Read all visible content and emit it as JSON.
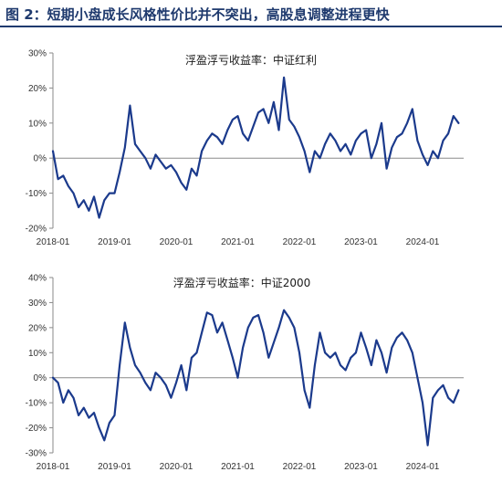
{
  "figure_title": "图 2：短期小盘成长风格性价比并不突出，高股息调整进程更快",
  "line_color": "#1b3a8c",
  "chart_data": [
    {
      "type": "line",
      "title": "浮盈浮亏收益率：中证红利",
      "ylim": [
        -20,
        30
      ],
      "y_ticks": [
        -20,
        -10,
        0,
        10,
        20,
        30
      ],
      "y_tick_labels": [
        "-20%",
        "-10%",
        "0%",
        "10%",
        "20%",
        "30%"
      ],
      "x_range": [
        "2018-01",
        "2024-09"
      ],
      "x_tick_labels": [
        "2018-01",
        "2019-01",
        "2020-01",
        "2021-01",
        "2022-01",
        "2023-01",
        "2024-01"
      ],
      "series": [
        {
          "x": [
            "2018-01",
            "2018-02",
            "2018-03",
            "2018-04",
            "2018-05",
            "2018-06",
            "2018-07",
            "2018-08",
            "2018-09",
            "2018-10",
            "2018-11",
            "2018-12",
            "2019-01",
            "2019-02",
            "2019-03",
            "2019-04",
            "2019-05",
            "2019-06",
            "2019-07",
            "2019-08",
            "2019-09",
            "2019-10",
            "2019-11",
            "2019-12",
            "2020-01",
            "2020-02",
            "2020-03",
            "2020-04",
            "2020-05",
            "2020-06",
            "2020-07",
            "2020-08",
            "2020-09",
            "2020-10",
            "2020-11",
            "2020-12",
            "2021-01",
            "2021-02",
            "2021-03",
            "2021-04",
            "2021-05",
            "2021-06",
            "2021-07",
            "2021-08",
            "2021-09",
            "2021-10",
            "2021-11",
            "2021-12",
            "2022-01",
            "2022-02",
            "2022-03",
            "2022-04",
            "2022-05",
            "2022-06",
            "2022-07",
            "2022-08",
            "2022-09",
            "2022-10",
            "2022-11",
            "2022-12",
            "2023-01",
            "2023-02",
            "2023-03",
            "2023-04",
            "2023-05",
            "2023-06",
            "2023-07",
            "2023-08",
            "2023-09",
            "2023-10",
            "2023-11",
            "2023-12",
            "2024-01",
            "2024-02",
            "2024-03",
            "2024-04",
            "2024-05",
            "2024-06",
            "2024-07",
            "2024-08"
          ],
          "y": [
            2,
            -6,
            -5,
            -8,
            -10,
            -14,
            -12,
            -15,
            -11,
            -17,
            -12,
            -10,
            -10,
            -4,
            3,
            15,
            4,
            2,
            0,
            -3,
            1,
            -1,
            -3,
            -2,
            -4,
            -7,
            -9,
            -3,
            -5,
            2,
            5,
            7,
            6,
            4,
            8,
            11,
            12,
            7,
            5,
            9,
            13,
            14,
            10,
            16,
            8,
            23,
            11,
            9,
            6,
            2,
            -4,
            2,
            0,
            4,
            7,
            5,
            2,
            4,
            1,
            5,
            7,
            8,
            0,
            4,
            10,
            -3,
            3,
            6,
            7,
            10,
            14,
            5,
            1,
            -2,
            2,
            0,
            5,
            7,
            12,
            10
          ]
        }
      ]
    },
    {
      "type": "line",
      "title": "浮盈浮亏收益率：中证2000",
      "ylim": [
        -30,
        40
      ],
      "y_ticks": [
        -30,
        -20,
        -10,
        0,
        10,
        20,
        30,
        40
      ],
      "y_tick_labels": [
        "-30%",
        "-20%",
        "-10%",
        "0%",
        "10%",
        "20%",
        "30%",
        "40%"
      ],
      "x_range": [
        "2018-01",
        "2024-09"
      ],
      "x_tick_labels": [
        "2018-01",
        "2019-01",
        "2020-01",
        "2021-01",
        "2022-01",
        "2023-01",
        "2024-01"
      ],
      "series": [
        {
          "x": [
            "2018-01",
            "2018-02",
            "2018-03",
            "2018-04",
            "2018-05",
            "2018-06",
            "2018-07",
            "2018-08",
            "2018-09",
            "2018-10",
            "2018-11",
            "2018-12",
            "2019-01",
            "2019-02",
            "2019-03",
            "2019-04",
            "2019-05",
            "2019-06",
            "2019-07",
            "2019-08",
            "2019-09",
            "2019-10",
            "2019-11",
            "2019-12",
            "2020-01",
            "2020-02",
            "2020-03",
            "2020-04",
            "2020-05",
            "2020-06",
            "2020-07",
            "2020-08",
            "2020-09",
            "2020-10",
            "2020-11",
            "2020-12",
            "2021-01",
            "2021-02",
            "2021-03",
            "2021-04",
            "2021-05",
            "2021-06",
            "2021-07",
            "2021-08",
            "2021-09",
            "2021-10",
            "2021-11",
            "2021-12",
            "2022-01",
            "2022-02",
            "2022-03",
            "2022-04",
            "2022-05",
            "2022-06",
            "2022-07",
            "2022-08",
            "2022-09",
            "2022-10",
            "2022-11",
            "2022-12",
            "2023-01",
            "2023-02",
            "2023-03",
            "2023-04",
            "2023-05",
            "2023-06",
            "2023-07",
            "2023-08",
            "2023-09",
            "2023-10",
            "2023-11",
            "2023-12",
            "2024-01",
            "2024-02",
            "2024-03",
            "2024-04",
            "2024-05",
            "2024-06",
            "2024-07",
            "2024-08"
          ],
          "y": [
            0,
            -2,
            -10,
            -5,
            -8,
            -15,
            -12,
            -16,
            -14,
            -20,
            -25,
            -18,
            -15,
            5,
            22,
            12,
            5,
            2,
            -2,
            -5,
            2,
            0,
            -3,
            -8,
            -2,
            5,
            -5,
            8,
            10,
            18,
            26,
            25,
            18,
            22,
            15,
            8,
            0,
            12,
            20,
            24,
            25,
            18,
            8,
            14,
            20,
            27,
            24,
            20,
            10,
            -5,
            -12,
            5,
            18,
            10,
            8,
            10,
            5,
            3,
            8,
            10,
            18,
            12,
            5,
            15,
            10,
            2,
            12,
            16,
            18,
            15,
            10,
            0,
            -10,
            -27,
            -8,
            -5,
            -3,
            -8,
            -10,
            -5
          ]
        }
      ]
    }
  ]
}
